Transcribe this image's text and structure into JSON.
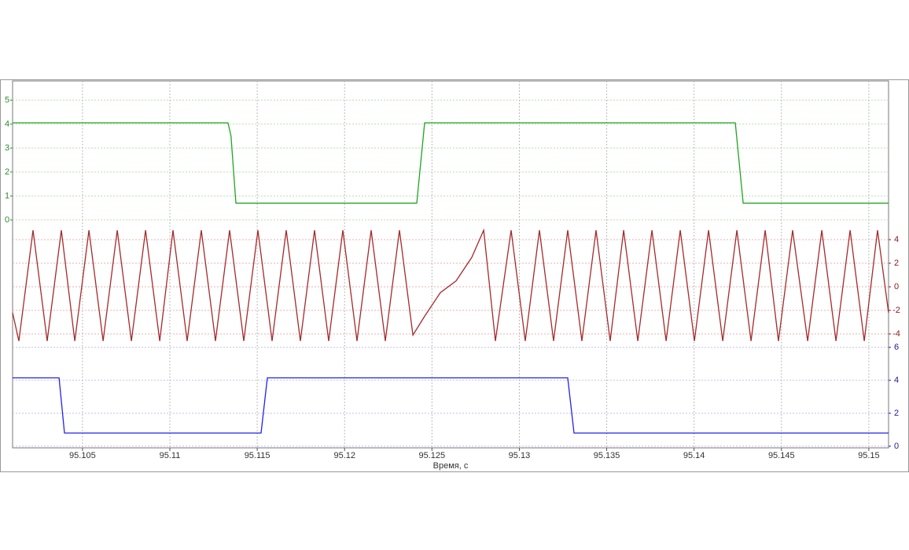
{
  "chart_data": [
    {
      "type": "line",
      "axis_side": "left",
      "tick_color": "#2e8b2e",
      "grid_color": "#b8e0b8",
      "x": [
        95.101,
        95.11333,
        95.1135,
        95.11378,
        95.12413,
        95.12458,
        95.14236,
        95.14281,
        95.15113
      ],
      "series": [
        {
          "color": "#1fa51f",
          "values": [
            4.05,
            4.05,
            3.5,
            0.7,
            0.7,
            4.05,
            4.05,
            0.7,
            0.7
          ]
        }
      ],
      "xlim": [
        95.101,
        95.15113
      ],
      "ylim": [
        -0.33,
        5.8
      ],
      "yticks": [
        0,
        1,
        2,
        3,
        4,
        5
      ]
    },
    {
      "type": "line",
      "axis_side": "right",
      "tick_color": "#8b1a1a",
      "grid_color": "#e8b0b0",
      "x": [
        95.101,
        95.10136,
        95.10217,
        95.10298,
        95.10379,
        95.10456,
        95.10537,
        95.10618,
        95.10699,
        95.1078,
        95.10861,
        95.10942,
        95.11018,
        95.11099,
        95.1118,
        95.11261,
        95.11342,
        95.11423,
        95.11504,
        95.11585,
        95.11666,
        95.11747,
        95.11828,
        95.11909,
        95.1199,
        95.12071,
        95.12152,
        95.12233,
        95.12314,
        95.12391,
        95.12458,
        95.12548,
        95.12638,
        95.12728,
        95.12796,
        95.12863,
        95.12953,
        95.13034,
        95.13115,
        95.13196,
        95.13277,
        95.13358,
        95.13439,
        95.1352,
        95.13597,
        95.13678,
        95.13759,
        95.1384,
        95.13921,
        95.14002,
        95.14083,
        95.14164,
        95.14245,
        95.14326,
        95.14407,
        95.14483,
        95.14564,
        95.1465,
        95.14731,
        95.14812,
        95.14893,
        95.14974,
        95.1505,
        95.15113
      ],
      "series": [
        {
          "color": "#a52a2a",
          "values": [
            -2.2,
            -4.6,
            4.8,
            -4.6,
            4.8,
            -4.6,
            4.8,
            -4.6,
            4.8,
            -4.6,
            4.8,
            -4.6,
            4.8,
            -4.6,
            4.8,
            -4.6,
            4.8,
            -4.6,
            4.8,
            -4.6,
            4.8,
            -4.6,
            4.8,
            -4.6,
            4.8,
            -4.6,
            4.8,
            -4.6,
            4.8,
            -4.1,
            -2.5,
            -0.5,
            0.5,
            2.5,
            4.8,
            -4.6,
            4.8,
            -4.6,
            4.8,
            -4.6,
            4.8,
            -4.6,
            4.8,
            -4.6,
            4.8,
            -4.6,
            4.8,
            -4.6,
            4.8,
            -4.6,
            4.8,
            -4.6,
            4.8,
            -4.6,
            4.8,
            -4.6,
            4.8,
            -4.6,
            4.8,
            -4.6,
            4.8,
            -4.6,
            4.8,
            -2.2
          ]
        }
      ],
      "xlim": [
        95.101,
        95.15113
      ],
      "ylim": [
        -5,
        5
      ],
      "yticks": [
        -4,
        -2,
        0,
        2,
        4
      ]
    },
    {
      "type": "line",
      "axis_side": "right",
      "tick_color": "#1a1a9b",
      "grid_color": "#c0c0f0",
      "x": [
        95.101,
        95.10366,
        95.10397,
        95.11522,
        95.11558,
        95.13277,
        95.13313,
        95.15113
      ],
      "series": [
        {
          "color": "#2222ee",
          "values": [
            4.15,
            4.15,
            0.8,
            0.8,
            4.15,
            4.15,
            0.8,
            0.8
          ]
        }
      ],
      "xlim": [
        95.101,
        95.15113
      ],
      "ylim": [
        -0.1,
        6.1
      ],
      "yticks": [
        0,
        2,
        4,
        6
      ],
      "xticks": [
        95.105,
        95.11,
        95.115,
        95.12,
        95.125,
        95.13,
        95.135,
        95.14,
        95.145,
        95.15
      ],
      "xlabel": "Время, с"
    }
  ]
}
